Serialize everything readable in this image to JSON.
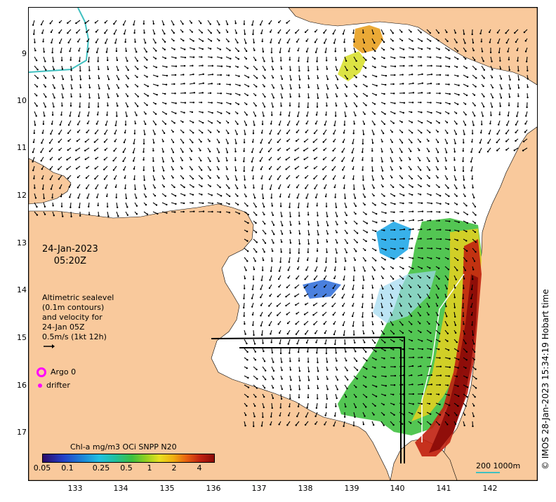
{
  "axes": {
    "lat_ticks": [
      "9",
      "10",
      "11",
      "12",
      "13",
      "14",
      "15",
      "16",
      "17"
    ],
    "lon_ticks": [
      "133",
      "134",
      "135",
      "136",
      "137",
      "138",
      "139",
      "140",
      "141",
      "142"
    ]
  },
  "overlay": {
    "date": "24-Jan-2023",
    "time": "05:20Z"
  },
  "legend": {
    "line1": "Altimetric sealevel",
    "line2": "(0.1m contours)",
    "line3": "and velocity for",
    "line4": "24-Jan 05Z",
    "line5": "0.5m/s (1kt 12h)",
    "argo_label": "Argo 0",
    "drifter_label": "drifter"
  },
  "colorbar": {
    "title": "Chl-a mg/m3 OCi SNPP N20",
    "ticks": [
      "0.05",
      "0.1",
      "0.25",
      "0.5",
      "1",
      "2",
      "4"
    ]
  },
  "scale": {
    "label1": "200",
    "label2": "1000m"
  },
  "credit": "© IMOS 28-Jan-2023 15:34:19 Hobart time",
  "colors": {
    "land": "#f9c99c",
    "sea": "#ffffff",
    "coast_outline": "#000000",
    "contour": "#40c0c0",
    "argo": "#ff00ff"
  }
}
